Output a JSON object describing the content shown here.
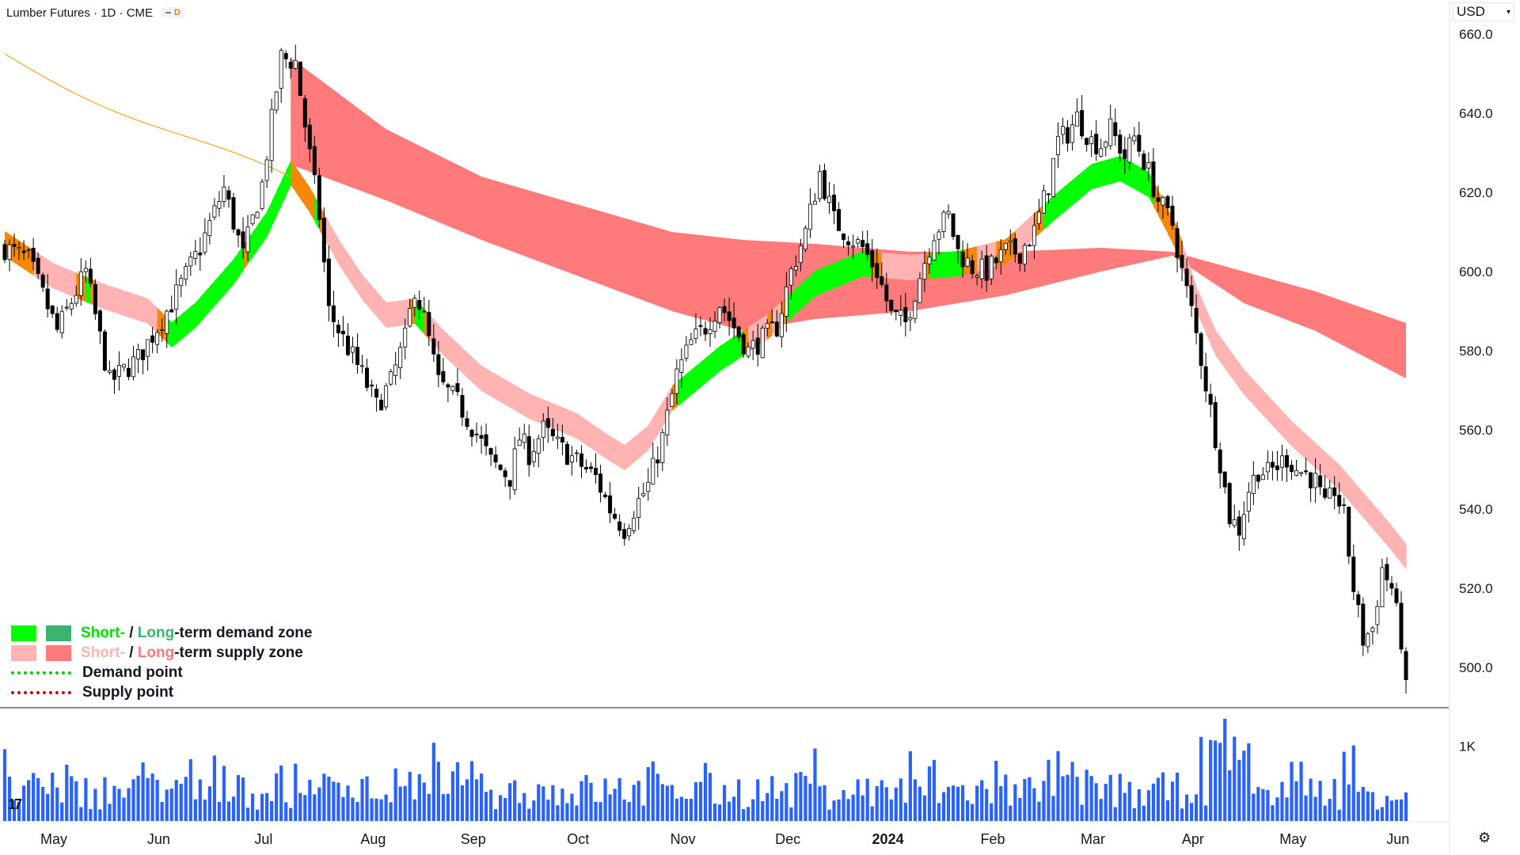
{
  "header": {
    "title": "Lumber Futures · 1D · CME",
    "badge": "D"
  },
  "currency": {
    "label": "USD"
  },
  "legend": {
    "demand_zone": {
      "short": "Short-",
      "sep": " / ",
      "long": "Long",
      "rest": "-term demand zone"
    },
    "supply_zone": {
      "short": "Short-",
      "sep": " / ",
      "long": "Long",
      "rest": "-term supply zone"
    },
    "demand_point": "Demand point",
    "supply_point": "Supply point"
  },
  "colors": {
    "short_demand": "#00ff00",
    "long_demand": "#3cb371",
    "short_supply": "#ffb3b3",
    "long_supply": "#ff7b7b",
    "overlap": "#f5870a",
    "ma_line": "#f5a623",
    "volume": "#2962ff",
    "demand_point": "#00cc00",
    "supply_point": "#cc0000"
  },
  "icons": {
    "settings": "gear-icon",
    "logo": "tradingview-logo-icon"
  },
  "chart_data": {
    "type": "candlestick",
    "title": "Lumber Futures · 1D · CME",
    "y_axis": {
      "ticks": [
        660.0,
        640.0,
        620.0,
        600.0,
        580.0,
        560.0,
        540.0,
        520.0,
        500.0
      ],
      "tick_labels": [
        "660.0",
        "640.0",
        "620.0",
        "600.0",
        "580.0",
        "560.0",
        "540.0",
        "520.0",
        "500.0"
      ],
      "range": [
        490,
        663
      ]
    },
    "x_axis": {
      "tick_labels": [
        "May",
        "Jun",
        "Jul",
        "Aug",
        "Sep",
        "Oct",
        "Nov",
        "Dec",
        "2024",
        "Feb",
        "Mar",
        "Apr",
        "May",
        "Jun"
      ],
      "tick_index": [
        0,
        22,
        44,
        67,
        88,
        110,
        132,
        154,
        175,
        197,
        218,
        239,
        260,
        282
      ]
    },
    "volume_axis": {
      "tick_labels": [
        "1K"
      ],
      "ticks": [
        1000
      ],
      "range": [
        0,
        1500
      ]
    },
    "price_path": [
      [
        0,
        606
      ],
      [
        5,
        603
      ],
      [
        11,
        585
      ],
      [
        17,
        600
      ],
      [
        22,
        572
      ],
      [
        28,
        578
      ],
      [
        35,
        592
      ],
      [
        41,
        606
      ],
      [
        46,
        621
      ],
      [
        50,
        604
      ],
      [
        54,
        622
      ],
      [
        58,
        654
      ],
      [
        61,
        653
      ],
      [
        63,
        637
      ],
      [
        66,
        614
      ],
      [
        68,
        590
      ],
      [
        71,
        583
      ],
      [
        75,
        574
      ],
      [
        78,
        566
      ],
      [
        81,
        572
      ],
      [
        84,
        583
      ],
      [
        86,
        596
      ],
      [
        88,
        588
      ],
      [
        91,
        572
      ],
      [
        95,
        567
      ],
      [
        99,
        559
      ],
      [
        102,
        552
      ],
      [
        106,
        548
      ],
      [
        108,
        558
      ],
      [
        110,
        554
      ],
      [
        113,
        560
      ],
      [
        116,
        556
      ],
      [
        120,
        552
      ],
      [
        124,
        548
      ],
      [
        127,
        540
      ],
      [
        130,
        535
      ],
      [
        132,
        540
      ],
      [
        135,
        546
      ],
      [
        138,
        558
      ],
      [
        141,
        574
      ],
      [
        144,
        582
      ],
      [
        147,
        586
      ],
      [
        150,
        592
      ],
      [
        153,
        586
      ],
      [
        156,
        580
      ],
      [
        159,
        583
      ],
      [
        162,
        586
      ],
      [
        165,
        600
      ],
      [
        168,
        610
      ],
      [
        171,
        625
      ],
      [
        174,
        613
      ],
      [
        177,
        609
      ],
      [
        180,
        606
      ],
      [
        183,
        600
      ],
      [
        186,
        589
      ],
      [
        189,
        587
      ],
      [
        192,
        599
      ],
      [
        195,
        610
      ],
      [
        198,
        614
      ],
      [
        200,
        605
      ],
      [
        203,
        601
      ],
      [
        206,
        600
      ],
      [
        210,
        605
      ],
      [
        213,
        605
      ],
      [
        216,
        610
      ],
      [
        219,
        622
      ],
      [
        221,
        633
      ],
      [
        223,
        635
      ],
      [
        225,
        639
      ],
      [
        228,
        633
      ],
      [
        230,
        632
      ],
      [
        232,
        636
      ],
      [
        235,
        629
      ],
      [
        237,
        634
      ],
      [
        240,
        625
      ],
      [
        242,
        618
      ],
      [
        245,
        612
      ],
      [
        247,
        600
      ],
      [
        249,
        590
      ],
      [
        251,
        578
      ],
      [
        253,
        565
      ],
      [
        255,
        552
      ],
      [
        257,
        538
      ],
      [
        259,
        535
      ],
      [
        261,
        545
      ],
      [
        263,
        550
      ],
      [
        265,
        549
      ],
      [
        267,
        551
      ],
      [
        269,
        553
      ],
      [
        271,
        550
      ],
      [
        273,
        549
      ],
      [
        275,
        547
      ],
      [
        277,
        540
      ],
      [
        279,
        545
      ],
      [
        281,
        538
      ],
      [
        283,
        520
      ],
      [
        285,
        507
      ],
      [
        287,
        510
      ],
      [
        289,
        525
      ],
      [
        291,
        520
      ],
      [
        293,
        507
      ],
      [
        294,
        494
      ]
    ],
    "candle_count": 295,
    "zones": {
      "long_supply_band": {
        "top": [
          [
            60,
            654
          ],
          [
            80,
            636
          ],
          [
            100,
            624
          ],
          [
            120,
            617
          ],
          [
            140,
            610
          ],
          [
            155,
            608
          ],
          [
            170,
            607
          ],
          [
            190,
            605
          ],
          [
            210,
            605
          ],
          [
            230,
            606
          ],
          [
            245,
            605
          ],
          [
            260,
            600
          ],
          [
            275,
            595
          ],
          [
            294,
            587
          ]
        ],
        "bottom": [
          [
            60,
            627
          ],
          [
            80,
            618
          ],
          [
            100,
            608
          ],
          [
            120,
            599
          ],
          [
            140,
            590
          ],
          [
            155,
            585
          ],
          [
            170,
            588
          ],
          [
            190,
            590
          ],
          [
            210,
            594
          ],
          [
            230,
            600
          ],
          [
            245,
            604
          ],
          [
            260,
            592
          ],
          [
            275,
            585
          ],
          [
            294,
            573
          ]
        ]
      },
      "short_band_mid": [
        [
          0,
          607
        ],
        [
          10,
          599
        ],
        [
          20,
          594
        ],
        [
          30,
          590
        ],
        [
          35,
          584
        ],
        [
          40,
          589
        ],
        [
          48,
          600
        ],
        [
          55,
          612
        ],
        [
          60,
          625
        ],
        [
          64,
          618
        ],
        [
          70,
          605
        ],
        [
          75,
          596
        ],
        [
          80,
          589
        ],
        [
          86,
          590
        ],
        [
          92,
          582
        ],
        [
          100,
          573
        ],
        [
          110,
          566
        ],
        [
          120,
          561
        ],
        [
          126,
          556
        ],
        [
          130,
          553
        ],
        [
          135,
          558
        ],
        [
          140,
          568
        ],
        [
          150,
          578
        ],
        [
          160,
          586
        ],
        [
          170,
          597
        ],
        [
          180,
          602
        ],
        [
          190,
          601
        ],
        [
          200,
          602
        ],
        [
          210,
          605
        ],
        [
          220,
          616
        ],
        [
          228,
          624
        ],
        [
          234,
          626
        ],
        [
          240,
          622
        ],
        [
          246,
          608
        ],
        [
          250,
          593
        ],
        [
          254,
          582
        ],
        [
          260,
          572
        ],
        [
          270,
          559
        ],
        [
          280,
          548
        ],
        [
          290,
          534
        ],
        [
          294,
          528
        ]
      ]
    }
  }
}
